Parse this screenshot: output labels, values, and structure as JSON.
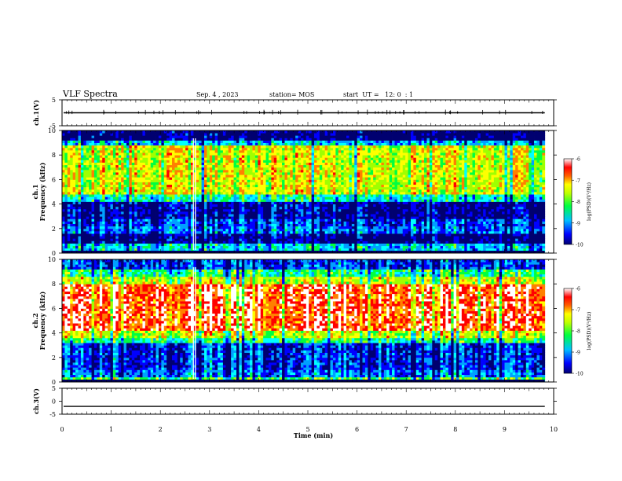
{
  "header": {
    "title": "VLF Spectra",
    "date": "Sep. 4 , 2023",
    "station": "station= MOS",
    "start": "start  UT =   12: 0  : 1"
  },
  "chart_data": [
    {
      "type": "line",
      "panel": "ch1-waveform",
      "ylabel": "ch.1(V)",
      "ylim": [
        -5,
        5
      ],
      "yticks": [
        5,
        -5
      ],
      "series": [
        {
          "values_approx": "flat trace near 0 V with small spikes"
        }
      ]
    },
    {
      "type": "heatmap",
      "panel": "ch1-spectrogram",
      "ylabel": "ch.1 Frequency (kHz)",
      "ylim": [
        0,
        10
      ],
      "yticks": [
        0,
        2,
        4,
        6,
        8,
        10
      ],
      "xlim": [
        0,
        10
      ],
      "dominant_bands": [
        {
          "freq_khz": [
            0.0,
            0.8
          ],
          "level": "low (blue/green)"
        },
        {
          "freq_khz": [
            0.8,
            1.6
          ],
          "level": "very low (dark blue)"
        },
        {
          "freq_khz": [
            1.6,
            2.2
          ],
          "level": "low (blue/cyan)"
        },
        {
          "freq_khz": [
            2.2,
            4.4
          ],
          "level": "very low (dark blue)"
        },
        {
          "freq_khz": [
            4.4,
            9.0
          ],
          "level": "high (green/yellow/red)"
        },
        {
          "freq_khz": [
            9.0,
            10.0
          ],
          "level": "very low (dark blue)"
        }
      ],
      "colorbar": {
        "label": "log(PSD)(V²/Hz)",
        "min": -10,
        "max": -6,
        "ticks": [
          "-6",
          "-7",
          "-8",
          "-9",
          "-10"
        ]
      }
    },
    {
      "type": "heatmap",
      "panel": "ch2-spectrogram",
      "ylabel": "ch.2 Frequency (kHz)",
      "ylim": [
        0,
        10
      ],
      "yticks": [
        0,
        2,
        4,
        6,
        8,
        10
      ],
      "xlim": [
        0,
        10
      ],
      "dominant_bands": [
        {
          "freq_khz": [
            0.0,
            0.4
          ],
          "level": "mid (green/yellow)"
        },
        {
          "freq_khz": [
            0.4,
            3.2
          ],
          "level": "low (blue/cyan)"
        },
        {
          "freq_khz": [
            3.2,
            4.2
          ],
          "level": "mid (green/yellow)"
        },
        {
          "freq_khz": [
            4.2,
            8.0
          ],
          "level": "very high (red/white)"
        },
        {
          "freq_khz": [
            8.0,
            9.2
          ],
          "level": "mid (green)"
        },
        {
          "freq_khz": [
            9.2,
            10.0
          ],
          "level": "low (blue)"
        }
      ],
      "colorbar": {
        "label": "log(PSD)(V²/Hz)",
        "min": -10,
        "max": -6,
        "ticks": [
          "-6",
          "-7",
          "-8",
          "-9",
          "-10"
        ]
      }
    },
    {
      "type": "line",
      "panel": "ch3-waveform",
      "ylabel": "ch.3(V)",
      "ylim": [
        -5,
        5
      ],
      "yticks": [
        5,
        0,
        -5
      ],
      "series": [
        {
          "values_approx": "flat trace at about -2 V"
        }
      ]
    }
  ],
  "xaxis": {
    "label": "Time (min)",
    "ticks": [
      "0",
      "1",
      "2",
      "3",
      "4",
      "5",
      "6",
      "7",
      "8",
      "9",
      "10"
    ]
  },
  "colormap": [
    "#000070",
    "#0000ff",
    "#00a0ff",
    "#00ffff",
    "#00ff40",
    "#a0ff00",
    "#ffff00",
    "#ff8000",
    "#ff0000",
    "#ffffff"
  ]
}
